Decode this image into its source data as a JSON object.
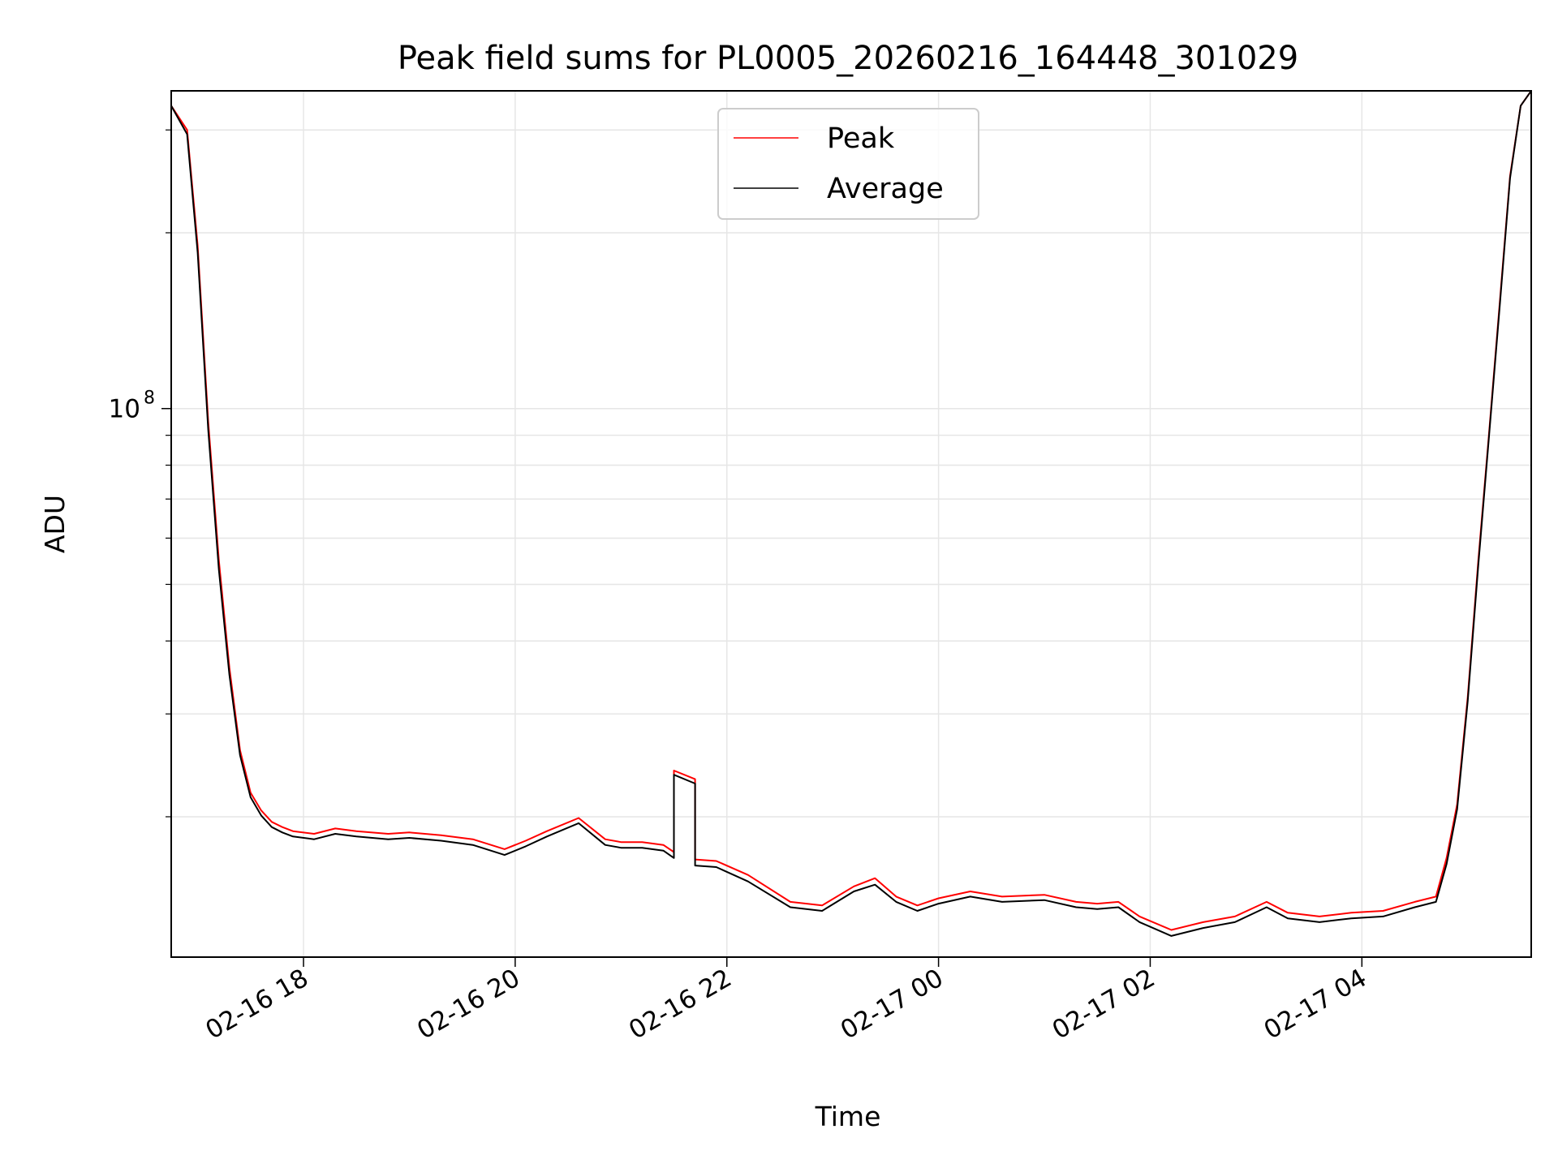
{
  "chart_data": {
    "type": "line",
    "title": "Peak field sums for PL0005_20260216_164448_301029",
    "xlabel": "Time",
    "ylabel": "ADU",
    "y_scale": "log",
    "ylim": [
      11500000,
      350000000
    ],
    "x_range_hours_from_0216_1600": [
      0.75,
      13.6
    ],
    "x_ticks": [
      {
        "hours": 2,
        "label": "02-16 18"
      },
      {
        "hours": 4,
        "label": "02-16 20"
      },
      {
        "hours": 6,
        "label": "02-16 22"
      },
      {
        "hours": 8,
        "label": "02-17 00"
      },
      {
        "hours": 10,
        "label": "02-17 02"
      },
      {
        "hours": 12,
        "label": "02-17 04"
      }
    ],
    "y_major_tick": {
      "value": 100000000,
      "label_base": "10",
      "label_exp": "8"
    },
    "y_minor_ticks": [
      20000000,
      30000000,
      40000000,
      50000000,
      60000000,
      70000000,
      80000000,
      90000000,
      200000000,
      300000000
    ],
    "grid": true,
    "legend": {
      "position": "top-center",
      "entries": [
        {
          "name": "Peak",
          "color": "#ff0000"
        },
        {
          "name": "Average",
          "color": "#000000"
        }
      ]
    },
    "series": [
      {
        "name": "Peak",
        "color": "#ff0000",
        "x_hours": [
          0.75,
          0.9,
          1.0,
          1.1,
          1.2,
          1.3,
          1.4,
          1.5,
          1.6,
          1.7,
          1.8,
          1.9,
          2.1,
          2.3,
          2.5,
          2.8,
          3.0,
          3.3,
          3.6,
          3.9,
          4.1,
          4.3,
          4.6,
          4.85,
          5.0,
          5.2,
          5.4,
          5.5,
          5.5,
          5.7,
          5.7,
          5.9,
          6.2,
          6.6,
          6.9,
          7.2,
          7.4,
          7.6,
          7.8,
          8.0,
          8.3,
          8.6,
          9.0,
          9.3,
          9.5,
          9.7,
          9.9,
          10.2,
          10.5,
          10.8,
          11.1,
          11.3,
          11.6,
          11.9,
          12.2,
          12.5,
          12.7,
          12.8,
          12.9,
          13.0,
          13.1,
          13.2,
          13.3,
          13.4,
          13.5,
          13.6
        ],
        "values": [
          330000000,
          300000000,
          190000000,
          95000000,
          55000000,
          36000000,
          26000000,
          22000000,
          20500000,
          19600000,
          19200000,
          18900000,
          18700000,
          19100000,
          18900000,
          18700000,
          18800000,
          18600000,
          18300000,
          17600000,
          18200000,
          18900000,
          19900000,
          18300000,
          18100000,
          18100000,
          17900000,
          17400000,
          24000000,
          23200000,
          16900000,
          16800000,
          15900000,
          14300000,
          14100000,
          15200000,
          15700000,
          14600000,
          14100000,
          14500000,
          14900000,
          14600000,
          14700000,
          14300000,
          14200000,
          14300000,
          13500000,
          12800000,
          13200000,
          13500000,
          14300000,
          13700000,
          13500000,
          13700000,
          13800000,
          14300000,
          14600000,
          17000000,
          21000000,
          32000000,
          55000000,
          90000000,
          150000000,
          250000000,
          330000000,
          350000000
        ]
      },
      {
        "name": "Average",
        "color": "#000000",
        "x_hours": [
          0.75,
          0.9,
          1.0,
          1.1,
          1.2,
          1.3,
          1.4,
          1.5,
          1.6,
          1.7,
          1.8,
          1.9,
          2.1,
          2.3,
          2.5,
          2.8,
          3.0,
          3.3,
          3.6,
          3.9,
          4.1,
          4.3,
          4.6,
          4.85,
          5.0,
          5.2,
          5.4,
          5.5,
          5.5,
          5.7,
          5.7,
          5.9,
          6.2,
          6.6,
          6.9,
          7.2,
          7.4,
          7.6,
          7.8,
          8.0,
          8.3,
          8.6,
          9.0,
          9.3,
          9.5,
          9.7,
          9.9,
          10.2,
          10.5,
          10.8,
          11.1,
          11.3,
          11.6,
          11.9,
          12.2,
          12.5,
          12.7,
          12.8,
          12.9,
          13.0,
          13.1,
          13.2,
          13.3,
          13.4,
          13.5,
          13.6
        ],
        "values": [
          330000000,
          295000000,
          185000000,
          92000000,
          53000000,
          35000000,
          25500000,
          21600000,
          20100000,
          19200000,
          18800000,
          18500000,
          18300000,
          18700000,
          18500000,
          18300000,
          18400000,
          18200000,
          17900000,
          17200000,
          17800000,
          18500000,
          19500000,
          17900000,
          17700000,
          17700000,
          17500000,
          17000000,
          23600000,
          22800000,
          16500000,
          16400000,
          15500000,
          14000000,
          13800000,
          14900000,
          15300000,
          14300000,
          13800000,
          14200000,
          14600000,
          14300000,
          14400000,
          14000000,
          13900000,
          14000000,
          13200000,
          12500000,
          12900000,
          13200000,
          14000000,
          13400000,
          13200000,
          13400000,
          13500000,
          14000000,
          14300000,
          16600000,
          20600000,
          31500000,
          54000000,
          89000000,
          148000000,
          248000000,
          330000000,
          350000000
        ]
      }
    ]
  }
}
